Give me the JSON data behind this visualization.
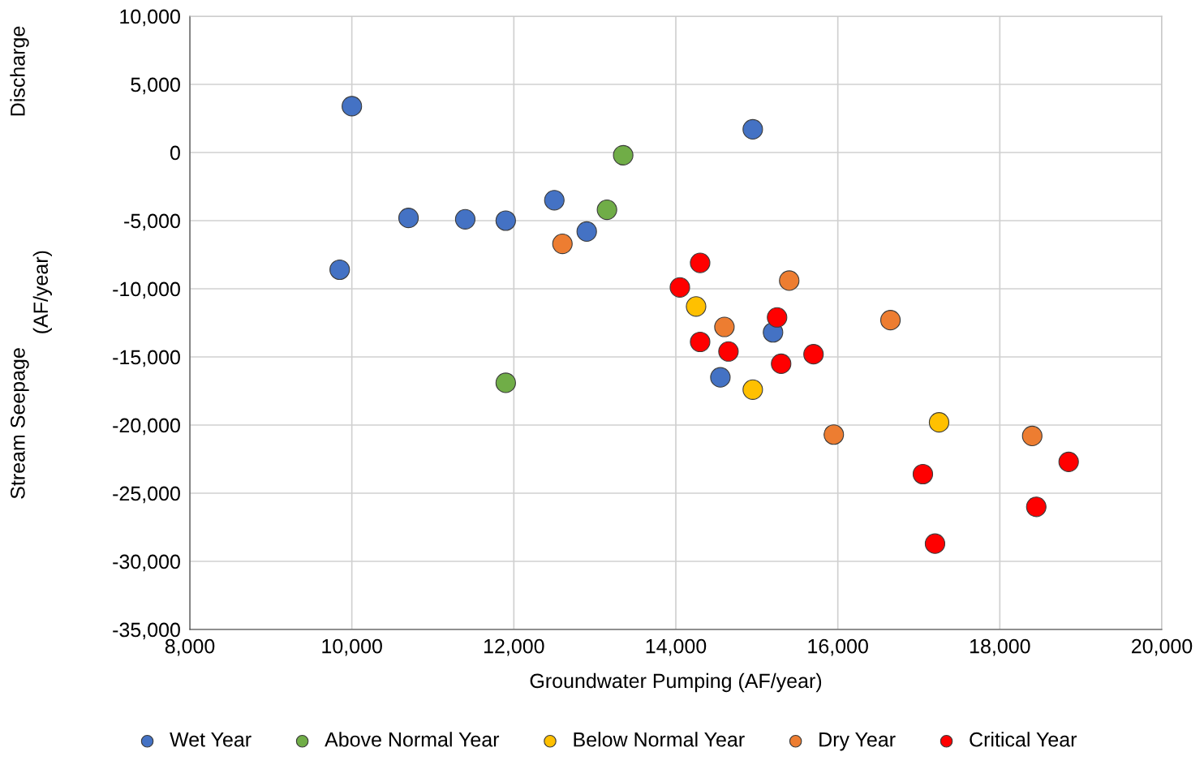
{
  "chart_data": {
    "type": "scatter",
    "xlabel": "Groundwater Pumping (AF/year)",
    "ylabel": "(AF/year)",
    "annotations": [
      "Discharge",
      "Stream Seepage"
    ],
    "xlim": [
      8000,
      20000
    ],
    "ylim": [
      -35000,
      10000
    ],
    "xticks": [
      {
        "value": 8000,
        "label": "8,000"
      },
      {
        "value": 10000,
        "label": "10,000"
      },
      {
        "value": 12000,
        "label": "12,000"
      },
      {
        "value": 14000,
        "label": "14,000"
      },
      {
        "value": 16000,
        "label": "16,000"
      },
      {
        "value": 18000,
        "label": "18,000"
      },
      {
        "value": 20000,
        "label": "20,000"
      }
    ],
    "yticks": [
      {
        "value": 10000,
        "label": "10,000"
      },
      {
        "value": 5000,
        "label": "5,000"
      },
      0,
      {
        "value": -5000,
        "label": "-5,000"
      },
      {
        "value": -10000,
        "label": "-10,000"
      },
      {
        "value": -15000,
        "label": "-15,000"
      },
      {
        "value": -20000,
        "label": "-20,000"
      },
      {
        "value": -25000,
        "label": "-25,000"
      },
      {
        "value": -30000,
        "label": "-30,000"
      },
      {
        "value": -35000,
        "label": "-35,000"
      }
    ],
    "grid": true,
    "legend": "bottom",
    "marker": "circle",
    "series": [
      {
        "name": "Wet Year",
        "color": "#4472c4",
        "x": [
          10000,
          14950,
          10700,
          11400,
          11900,
          12500,
          12900,
          9850,
          15200,
          14550
        ],
        "values": [
          3400,
          1700,
          -4800,
          -4900,
          -5000,
          -3500,
          -5800,
          -8600,
          -13200,
          -16500
        ]
      },
      {
        "name": "Above Normal Year",
        "color": "#70ad47",
        "x": [
          13350,
          13150,
          11900
        ],
        "values": [
          -200,
          -4200,
          -16900
        ]
      },
      {
        "name": "Below Normal Year",
        "color": "#ffc000",
        "x": [
          14250,
          14950,
          17250
        ],
        "values": [
          -11300,
          -17400,
          -19800
        ]
      },
      {
        "name": "Dry Year",
        "color": "#ed7d31",
        "x": [
          12600,
          15400,
          14600,
          16650,
          15950,
          18400
        ],
        "values": [
          -6700,
          -9400,
          -12800,
          -12300,
          -20700,
          -20800
        ]
      },
      {
        "name": "Critical Year",
        "color": "#ff0000",
        "x": [
          14300,
          14050,
          15250,
          14300,
          14650,
          15300,
          15700,
          17050,
          18850,
          18450,
          17200
        ],
        "values": [
          -8100,
          -9900,
          -12100,
          -13900,
          -14600,
          -15500,
          -14800,
          -23600,
          -22700,
          -26000,
          -28700
        ]
      }
    ]
  }
}
